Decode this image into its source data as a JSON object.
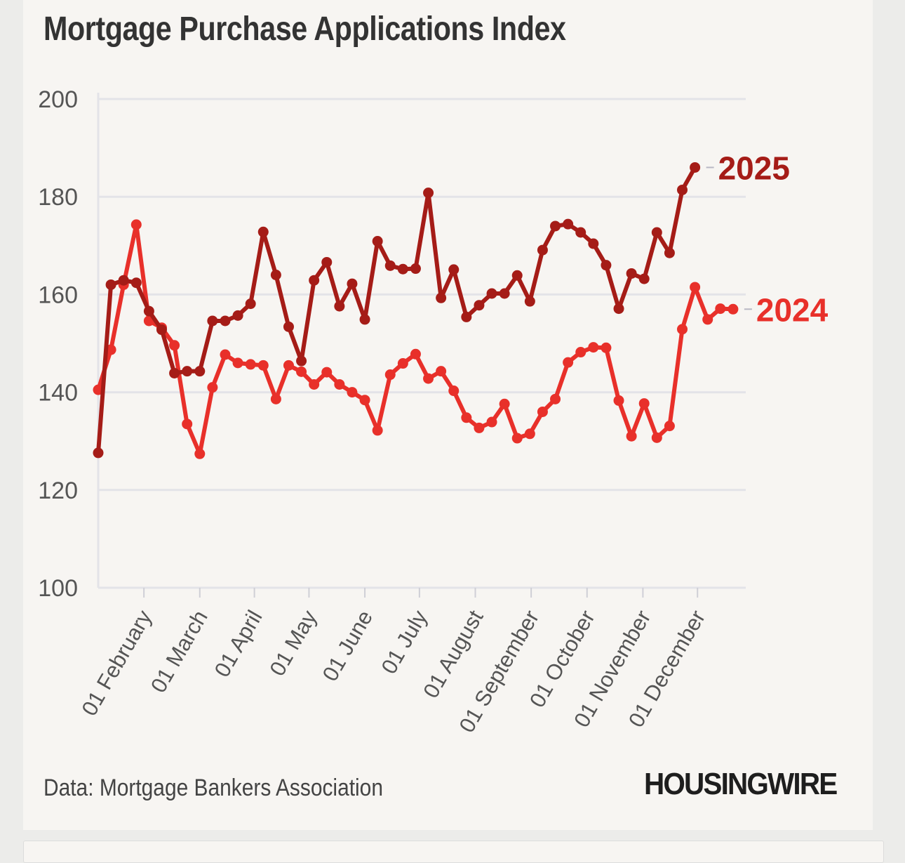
{
  "title": "Mortgage Purchase Applications Index",
  "source": "Data: Mortgage Bankers Association",
  "brand": "HOUSINGWIRE",
  "chart_data": {
    "type": "line",
    "title": "Mortgage Purchase Applications Index",
    "xlabel": "",
    "ylabel": "",
    "ylim": [
      100,
      200
    ],
    "yticks": [
      100,
      120,
      140,
      160,
      180,
      200
    ],
    "grid": true,
    "x_range_weeks": [
      0,
      51
    ],
    "month_ticks": [
      {
        "label": "01 February",
        "week": 3.6
      },
      {
        "label": "01 March",
        "week": 8.0
      },
      {
        "label": "01 April",
        "week": 12.3
      },
      {
        "label": "01 May",
        "week": 16.6
      },
      {
        "label": "01 June",
        "week": 21.0
      },
      {
        "label": "01 July",
        "week": 25.3
      },
      {
        "label": "01 August",
        "week": 29.7
      },
      {
        "label": "01 September",
        "week": 34.1
      },
      {
        "label": "01 October",
        "week": 38.5
      },
      {
        "label": "01 November",
        "week": 42.9
      },
      {
        "label": "01 December",
        "week": 47.2
      }
    ],
    "series": [
      {
        "name": "2024",
        "label": "2024",
        "color": "#e8302a",
        "values": [
          140.5,
          148.7,
          162.0,
          174.3,
          154.6,
          153.2,
          149.6,
          133.5,
          127.4,
          141.0,
          147.7,
          146.0,
          145.7,
          145.5,
          138.6,
          145.5,
          144.2,
          141.6,
          144.1,
          141.6,
          140.0,
          138.4,
          132.2,
          143.6,
          145.9,
          147.8,
          142.8,
          144.3,
          140.3,
          134.8,
          132.7,
          133.9,
          137.6,
          130.6,
          131.5,
          136.0,
          138.6,
          146.1,
          148.2,
          149.2,
          149.1,
          138.3,
          131.0,
          137.7,
          130.7,
          133.1,
          152.9,
          161.5,
          154.9,
          157.1,
          157.0
        ]
      },
      {
        "name": "2025",
        "label": "2025",
        "color": "#a51c17",
        "values": [
          127.6,
          162.0,
          162.9,
          162.4,
          156.6,
          152.8,
          143.9,
          144.3,
          144.3,
          154.6,
          154.6,
          155.7,
          158.1,
          172.8,
          164.0,
          153.4,
          146.4,
          162.9,
          166.6,
          157.6,
          162.2,
          154.9,
          170.9,
          165.9,
          165.2,
          165.3,
          180.8,
          159.3,
          165.1,
          155.4,
          157.8,
          160.2,
          160.2,
          163.9,
          158.6,
          169.1,
          174.0,
          174.4,
          172.7,
          170.4,
          166.0,
          157.1,
          164.3,
          163.2,
          172.7,
          168.5,
          181.4,
          186.0
        ]
      }
    ]
  }
}
